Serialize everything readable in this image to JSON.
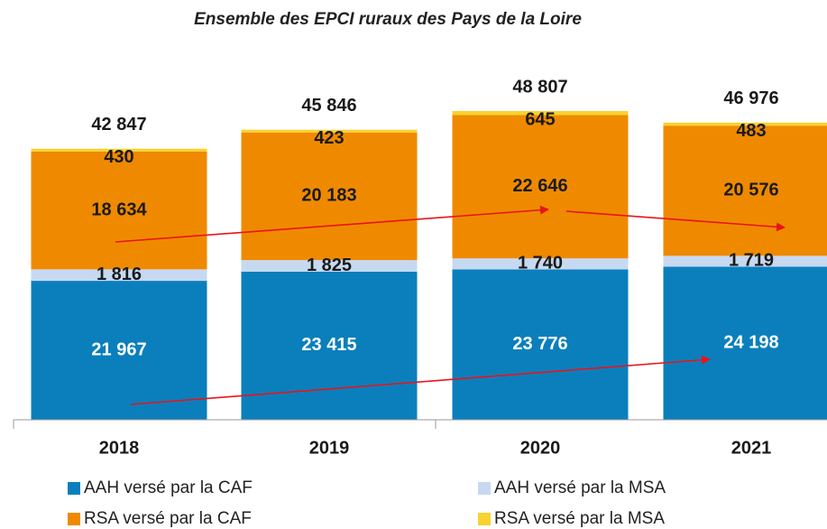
{
  "chart_data": {
    "type": "stacked_bar",
    "title": "Ensemble des EPCI ruraux des Pays de la Loire",
    "categories": [
      "2018",
      "2019",
      "2020",
      "2021"
    ],
    "series": [
      {
        "name": "AAH versé par la CAF",
        "color": "#0b7fbc",
        "values": [
          21967,
          23415,
          23776,
          24198
        ],
        "value_labels": [
          "21 967",
          "23 415",
          "23 776",
          "24 198"
        ]
      },
      {
        "name": "AAH versé par la MSA",
        "color": "#c6d9f1",
        "values": [
          1816,
          1825,
          1740,
          1719
        ],
        "value_labels": [
          "1 816",
          "1 825",
          "1 740",
          "1 719"
        ]
      },
      {
        "name": "RSA versé par la CAF",
        "color": "#ef8a00",
        "values": [
          18634,
          20183,
          22646,
          20576
        ],
        "value_labels": [
          "18 634",
          "20 183",
          "22 646",
          "20 576"
        ]
      },
      {
        "name": "RSA versé par la MSA",
        "color": "#f8d22e",
        "values": [
          430,
          423,
          645,
          483
        ],
        "value_labels": [
          "430",
          "423",
          "645",
          "483"
        ]
      }
    ],
    "totals": [
      42847,
      45846,
      48807,
      46976
    ],
    "total_labels": [
      "42 847",
      "45 846",
      "48 807",
      "46 976"
    ]
  }
}
